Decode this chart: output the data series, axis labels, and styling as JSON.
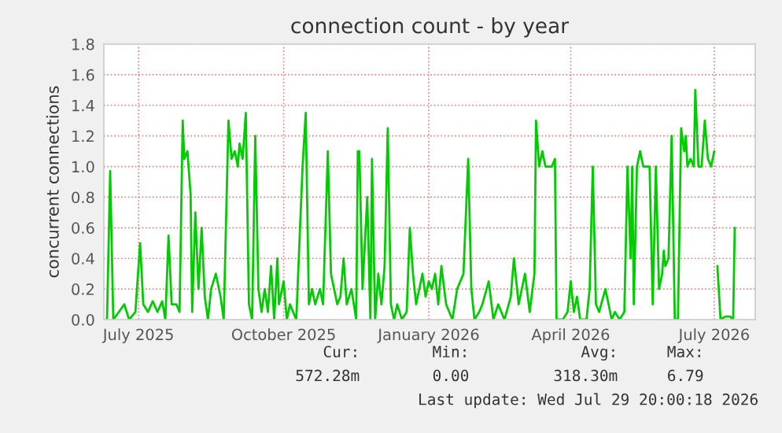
{
  "chart_data": {
    "type": "line",
    "title": "connection count - by year",
    "ylabel": "concurrent connections",
    "x": [
      "2025-06-11",
      "2025-06-13",
      "2025-06-15",
      "2025-06-22",
      "2025-06-25",
      "2025-06-29",
      "2025-07-02",
      "2025-07-04",
      "2025-07-07",
      "2025-07-10",
      "2025-07-13",
      "2025-07-16",
      "2025-07-18",
      "2025-07-20",
      "2025-07-22",
      "2025-07-25",
      "2025-07-27",
      "2025-07-29",
      "2025-07-30",
      "2025-08-01",
      "2025-08-03",
      "2025-08-04",
      "2025-08-06",
      "2025-08-08",
      "2025-08-10",
      "2025-08-12",
      "2025-08-14",
      "2025-08-16",
      "2025-08-19",
      "2025-08-22",
      "2025-08-24",
      "2025-08-27",
      "2025-08-29",
      "2025-08-31",
      "2025-09-02",
      "2025-09-03",
      "2025-09-05",
      "2025-09-07",
      "2025-09-09",
      "2025-09-11",
      "2025-09-13",
      "2025-09-15",
      "2025-09-17",
      "2025-09-19",
      "2025-09-21",
      "2025-09-23",
      "2025-09-25",
      "2025-09-27",
      "2025-09-28",
      "2025-10-01",
      "2025-10-03",
      "2025-10-05",
      "2025-10-09",
      "2025-10-13",
      "2025-10-15",
      "2025-10-17",
      "2025-10-19",
      "2025-10-21",
      "2025-10-24",
      "2025-10-26",
      "2025-10-29",
      "2025-10-31",
      "2025-11-02",
      "2025-11-04",
      "2025-11-06",
      "2025-11-08",
      "2025-11-10",
      "2025-11-13",
      "2025-11-16",
      "2025-11-17",
      "2025-11-18",
      "2025-11-20",
      "2025-11-23",
      "2025-11-25",
      "2025-11-26",
      "2025-11-28",
      "2025-11-30",
      "2025-12-02",
      "2025-12-04",
      "2025-12-06",
      "2025-12-08",
      "2025-12-10",
      "2025-12-12",
      "2025-12-15",
      "2025-12-18",
      "2025-12-20",
      "2025-12-22",
      "2025-12-24",
      "2025-12-28",
      "2025-12-30",
      "2026-01-01",
      "2026-01-03",
      "2026-01-05",
      "2026-01-07",
      "2026-01-09",
      "2026-01-12",
      "2026-01-16",
      "2026-01-19",
      "2026-01-23",
      "2026-01-26",
      "2026-01-28",
      "2026-01-30",
      "2026-02-02",
      "2026-02-04",
      "2026-02-08",
      "2026-02-11",
      "2026-02-14",
      "2026-02-18",
      "2026-02-22",
      "2026-02-24",
      "2026-02-27",
      "2026-03-03",
      "2026-03-06",
      "2026-03-09",
      "2026-03-10",
      "2026-03-12",
      "2026-03-14",
      "2026-03-16",
      "2026-03-20",
      "2026-03-22",
      "2026-03-23",
      "2026-03-27",
      "2026-03-30",
      "2026-04-01",
      "2026-04-03",
      "2026-04-05",
      "2026-04-07",
      "2026-04-11",
      "2026-04-13",
      "2026-04-15",
      "2026-04-17",
      "2026-04-19",
      "2026-04-23",
      "2026-04-25",
      "2026-04-27",
      "2026-04-29",
      "2026-05-02",
      "2026-05-05",
      "2026-05-07",
      "2026-05-09",
      "2026-05-10",
      "2026-05-11",
      "2026-05-13",
      "2026-05-15",
      "2026-05-17",
      "2026-05-21",
      "2026-05-23",
      "2026-05-25",
      "2026-05-27",
      "2026-05-29",
      "2026-05-30",
      "2026-05-31",
      "2026-06-02",
      "2026-06-04",
      "2026-06-06",
      "2026-06-08",
      "2026-06-10",
      "2026-06-12",
      "2026-06-13",
      "2026-06-14",
      "2026-06-16",
      "2026-06-18",
      "2026-06-19",
      "2026-06-21",
      "2026-06-23",
      "2026-06-25",
      "2026-06-27",
      "2026-06-29",
      "2026-07-01",
      "2026-07-02",
      "2026-07-03",
      "2026-07-05",
      "2026-07-08",
      "2026-07-11",
      "2026-07-13",
      "2026-07-14"
    ],
    "series": [
      {
        "color": "#00cc00",
        "values": [
          0.0,
          0.97,
          0.0,
          0.1,
          0.0,
          0.05,
          0.5,
          0.1,
          0.05,
          0.12,
          0.05,
          0.12,
          0.0,
          0.55,
          0.1,
          0.1,
          0.05,
          1.3,
          1.05,
          1.1,
          0.82,
          0.05,
          0.7,
          0.2,
          0.6,
          0.15,
          0.0,
          0.2,
          0.3,
          0.15,
          0.0,
          1.3,
          1.05,
          1.1,
          1.0,
          1.15,
          1.05,
          1.35,
          0.1,
          0.0,
          1.2,
          0.2,
          0.05,
          0.2,
          0.05,
          0.35,
          0.0,
          0.4,
          0.1,
          0.25,
          0.0,
          0.1,
          0.0,
          1.0,
          1.35,
          0.1,
          0.2,
          0.1,
          0.2,
          0.1,
          1.1,
          0.3,
          0.2,
          0.1,
          0.15,
          0.4,
          0.1,
          0.2,
          0.0,
          1.1,
          1.1,
          0.2,
          0.8,
          0.0,
          1.05,
          0.0,
          0.3,
          0.1,
          0.35,
          1.25,
          0.1,
          0.0,
          0.1,
          0.0,
          0.05,
          0.6,
          0.3,
          0.1,
          0.3,
          0.15,
          0.25,
          0.2,
          0.3,
          0.1,
          0.35,
          0.1,
          0.0,
          0.2,
          0.3,
          1.05,
          0.2,
          0.0,
          0.05,
          0.1,
          0.25,
          0.0,
          0.1,
          0.0,
          0.15,
          0.4,
          0.1,
          0.3,
          0.05,
          0.3,
          1.3,
          1.0,
          1.1,
          1.0,
          1.0,
          1.05,
          0.0,
          0.0,
          0.05,
          0.25,
          0.05,
          0.15,
          0.0,
          0.0,
          0.2,
          1.0,
          0.1,
          0.05,
          0.2,
          0.1,
          0.0,
          0.05,
          0.0,
          0.05,
          1.0,
          0.4,
          1.0,
          0.1,
          1.0,
          1.1,
          1.0,
          1.0,
          0.1,
          1.0,
          0.2,
          0.3,
          0.45,
          0.35,
          0.4,
          1.2,
          0.0,
          0.0,
          1.25,
          1.1,
          1.2,
          1.0,
          1.05,
          1.0,
          1.5,
          1.0,
          1.0,
          1.3,
          1.05,
          1.0,
          1.1,
          null,
          0.35,
          0.0,
          0.02,
          0.02,
          0.0,
          0.6
        ]
      }
    ],
    "xlim": [
      "2025-06-09",
      "2026-07-27"
    ],
    "xticks": [
      {
        "value": "2025-07-01",
        "label": "July 2025"
      },
      {
        "value": "2025-10-01",
        "label": "October 2025"
      },
      {
        "value": "2026-01-01",
        "label": "January 2026"
      },
      {
        "value": "2026-04-01",
        "label": "April 2026"
      },
      {
        "value": "2026-07-01",
        "label": "July 2026"
      }
    ],
    "ylim": [
      0,
      1.8
    ],
    "yticks": [
      {
        "value": 0,
        "label": "0.0"
      },
      {
        "value": 0.2,
        "label": "0.2"
      },
      {
        "value": 0.4,
        "label": "0.4"
      },
      {
        "value": 0.6,
        "label": "0.6"
      },
      {
        "value": 0.8,
        "label": "0.8"
      },
      {
        "value": 1.0,
        "label": "1.0"
      },
      {
        "value": 1.2,
        "label": "1.2"
      },
      {
        "value": 1.4,
        "label": "1.4"
      },
      {
        "value": 1.6,
        "label": "1.6"
      },
      {
        "value": 1.8,
        "label": "1.8"
      }
    ],
    "grid": true,
    "marker": "none",
    "line_style": "solid",
    "annotations": [
      "Cur:",
      "Min:",
      "Avg:",
      "Max:",
      "572.28m",
      "0.00",
      "318.30m",
      "6.79",
      "Last update: Wed Jul 29 20:00:18 2026"
    ]
  }
}
